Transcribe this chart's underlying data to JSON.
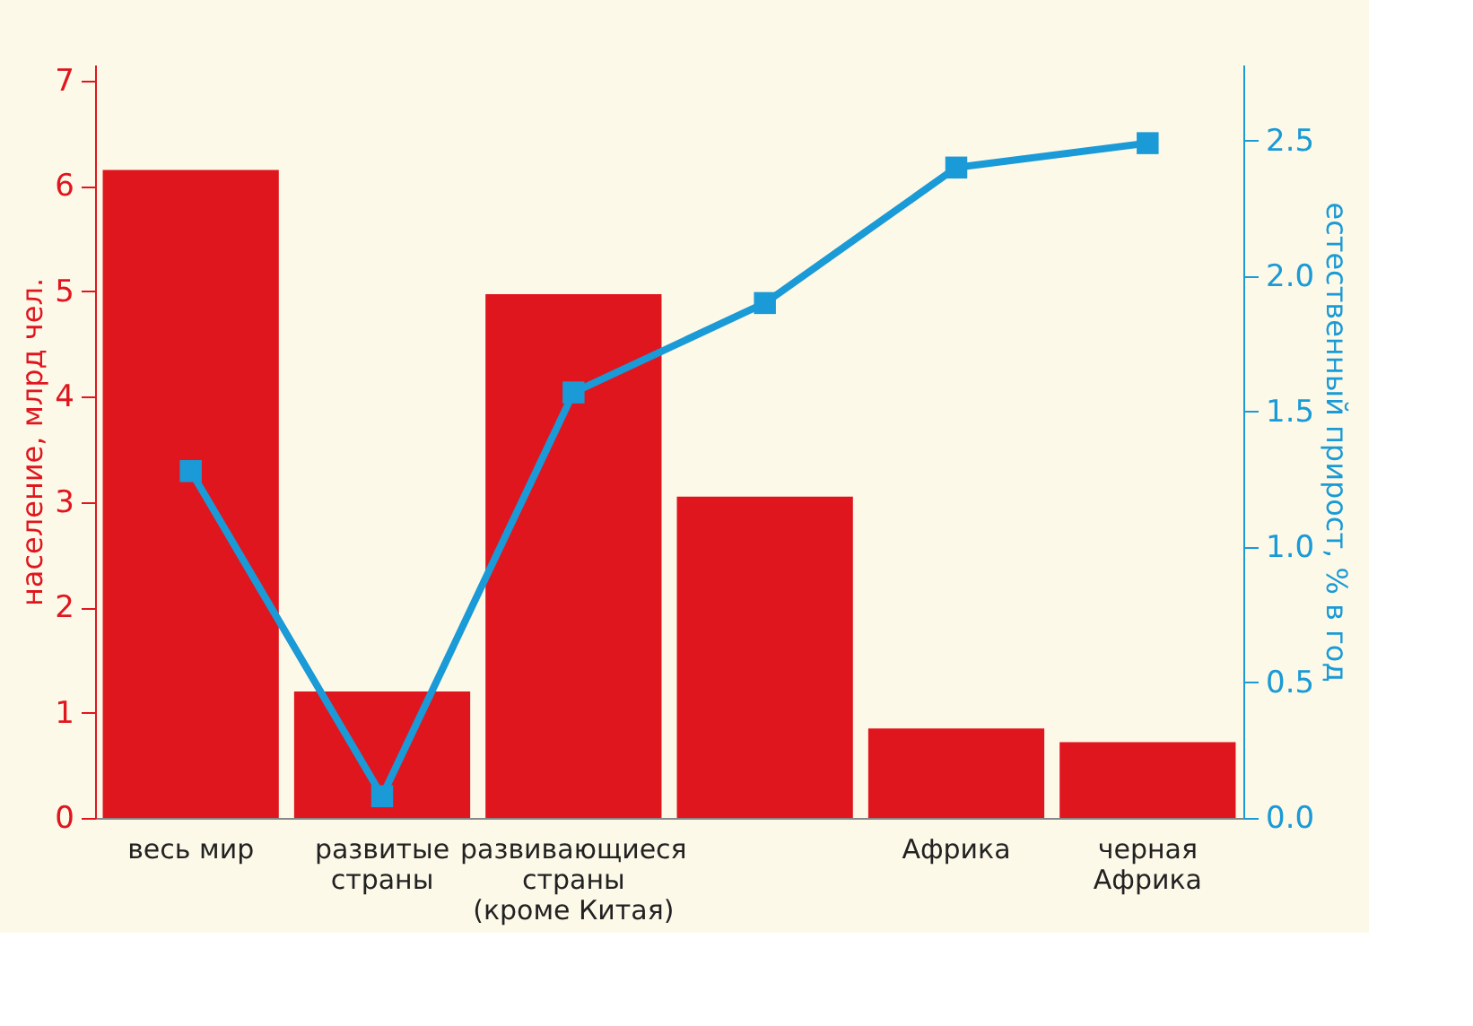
{
  "chart_data": {
    "type": "bar",
    "ylabel": "население, млрд чел.",
    "y2label": "естественный прирост, % в год",
    "categories": [
      "весь мир",
      "развитые\nстраны",
      "развивающиеся\nстраны\n(кроме Китая)",
      null,
      "Африка",
      "черная\nАфрика"
    ],
    "series": [
      {
        "color": "#e0161f",
        "values": [
          6.15,
          1.2,
          4.97,
          3.05,
          0.85,
          0.72
        ]
      },
      {
        "type": "line",
        "axis": "y2",
        "color": "#1a9ad6",
        "marker": "square",
        "values": [
          1.28,
          0.08,
          1.57,
          1.9,
          2.4,
          2.49
        ]
      }
    ],
    "ylim": [
      0,
      7.15
    ],
    "yticks": [
      0,
      1,
      2,
      3,
      4,
      5,
      6,
      7
    ],
    "y2lim": [
      0,
      2.78
    ],
    "y2ticks": [
      {
        "value": 0,
        "label": "0.0"
      },
      0.5,
      {
        "value": 1,
        "label": "1.0"
      },
      1.5,
      {
        "value": 2,
        "label": "2.0"
      },
      2.5
    ],
    "grid": false
  }
}
